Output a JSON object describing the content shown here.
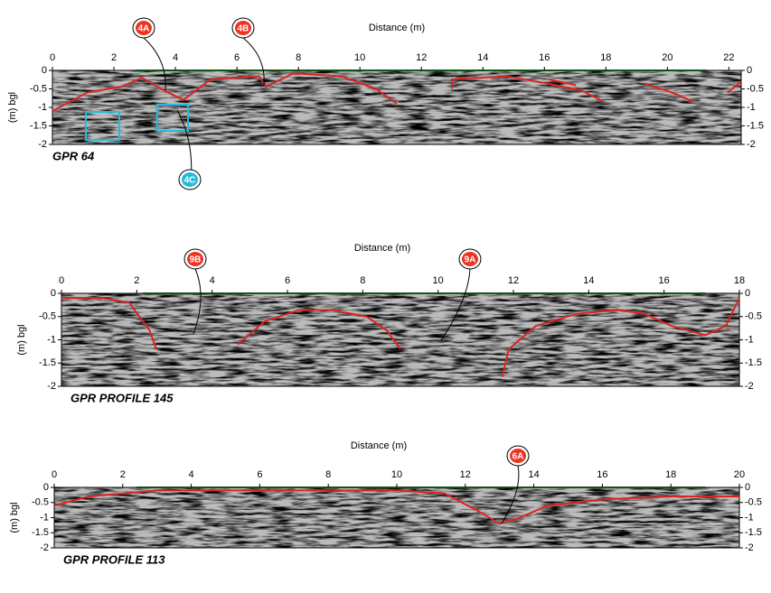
{
  "panels": [
    {
      "name": "GPR 64",
      "x_label": "Distance (m)",
      "y_label": "(m) bgl",
      "xlim": [
        0,
        22.4
      ],
      "xticks": [
        0,
        2,
        4,
        6,
        8,
        10,
        12,
        14,
        16,
        18,
        20,
        22
      ],
      "ylim": [
        -2,
        0
      ],
      "yticks": [
        0,
        -0.5,
        -1,
        -1.5,
        -2
      ],
      "callouts": [
        "4A",
        "4B",
        "4C"
      ]
    },
    {
      "name": "GPR PROFILE 145",
      "x_label": "Distance (m)",
      "y_label": "(m) bgl",
      "xlim": [
        0,
        18
      ],
      "xticks": [
        0,
        2,
        4,
        6,
        8,
        10,
        12,
        14,
        16,
        18
      ],
      "ylim": [
        -2,
        0
      ],
      "yticks": [
        0,
        -0.5,
        -1,
        -1.5,
        -2
      ],
      "callouts": [
        "9B",
        "9A"
      ]
    },
    {
      "name": "GPR PROFILE 113",
      "x_label": "Distance (m)",
      "y_label": "(m) bgl",
      "xlim": [
        0,
        20
      ],
      "xticks": [
        0,
        2,
        4,
        6,
        8,
        10,
        12,
        14,
        16,
        18,
        20
      ],
      "ylim": [
        -2,
        0
      ],
      "yticks": [
        0,
        -0.5,
        -1,
        -1.5,
        -2
      ],
      "callouts": [
        "6A"
      ]
    }
  ]
}
